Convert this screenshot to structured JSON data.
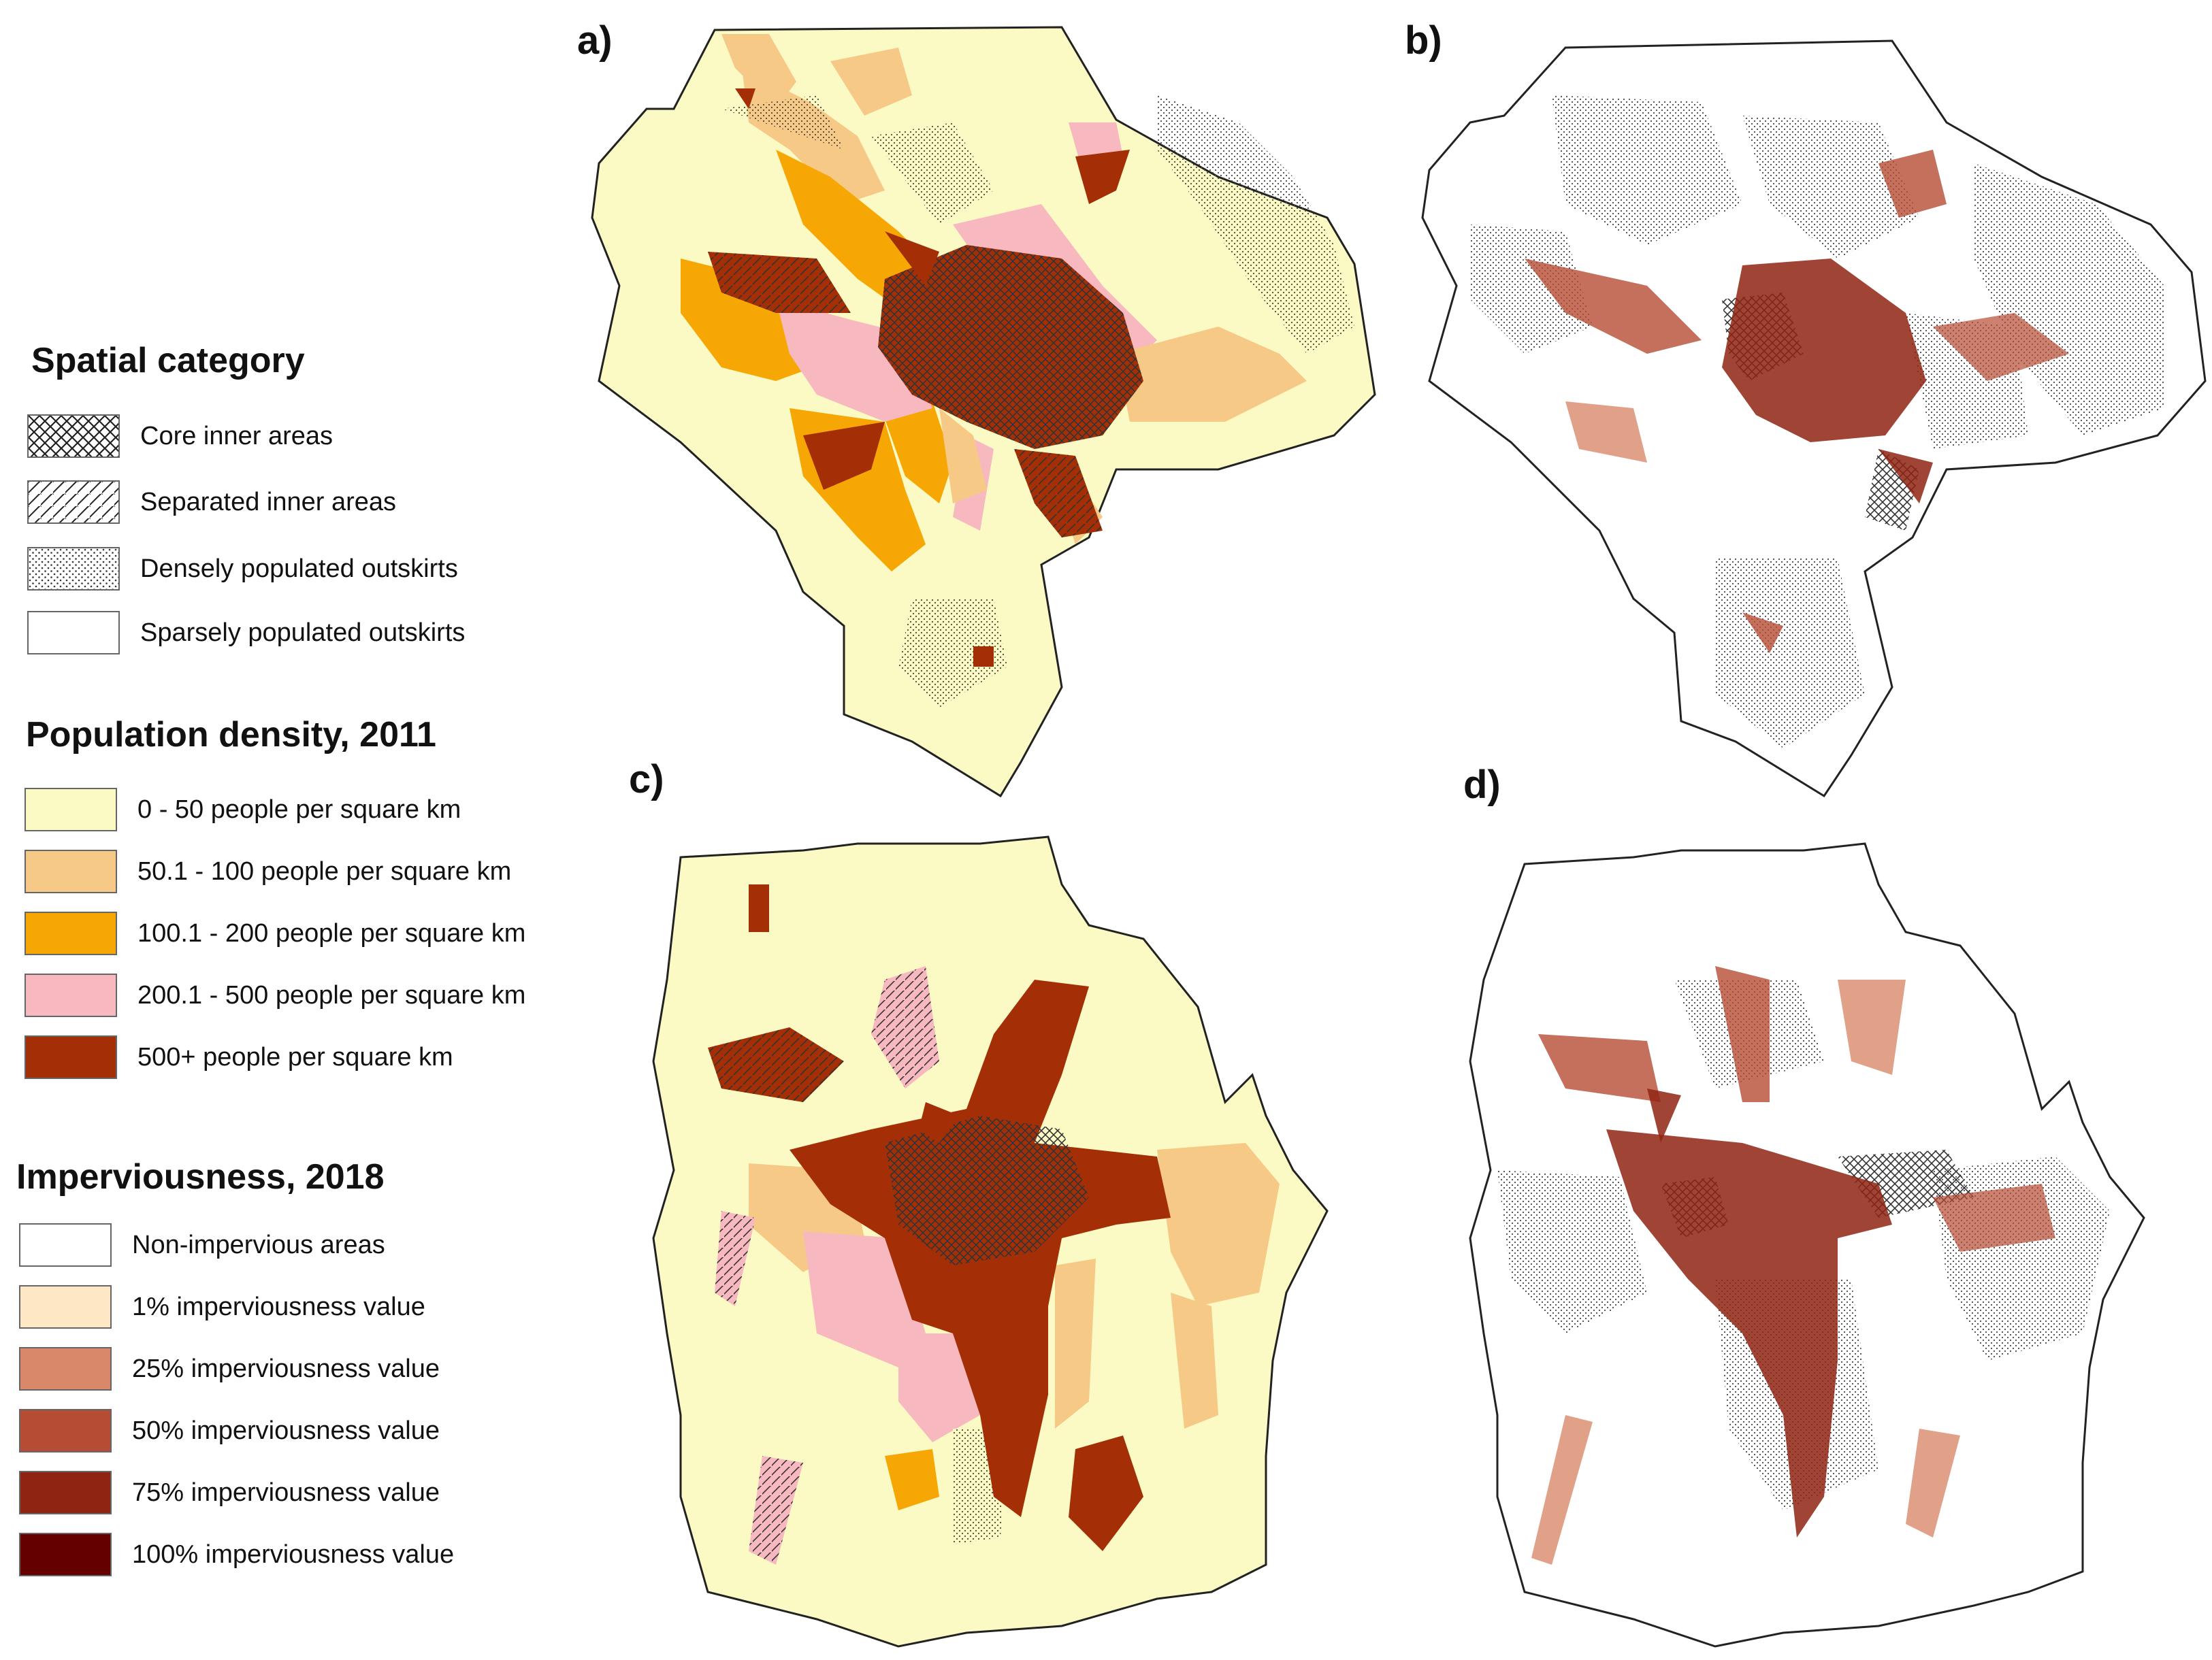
{
  "panels": [
    {
      "label": "a)"
    },
    {
      "label": "b)"
    },
    {
      "label": "c)"
    },
    {
      "label": "d)"
    }
  ],
  "legend": {
    "spatial_category": {
      "title": "Spatial category",
      "items": [
        {
          "label": "Core inner areas",
          "pattern": "crosshatch"
        },
        {
          "label": "Separated inner areas",
          "pattern": "diagonal-hatch"
        },
        {
          "label": "Densely populated outskirts",
          "pattern": "dots"
        },
        {
          "label": "Sparsely populated outskirts",
          "pattern": "blank"
        }
      ]
    },
    "population_density": {
      "title": "Population density, 2011",
      "items": [
        {
          "label": "0 - 50 people per square km",
          "color": "#fcfac4"
        },
        {
          "label": "50.1 - 100 people per square km",
          "color": "#f6ca86"
        },
        {
          "label": "100.1 - 200 people per square km",
          "color": "#f7a703"
        },
        {
          "label": "200.1 - 500 people per square km",
          "color": "#f7b9bf"
        },
        {
          "label": "500+ people per square km",
          "color": "#a42f06"
        }
      ]
    },
    "imperviousness": {
      "title": "Imperviousness, 2018",
      "items": [
        {
          "label": "Non-impervious areas",
          "color": "#ffffff"
        },
        {
          "label": "1% imperviousness value",
          "color": "#fde7c4"
        },
        {
          "label": "25% imperviousness value",
          "color": "#d9896a"
        },
        {
          "label": "50% imperviousness value",
          "color": "#b64c34"
        },
        {
          "label": "75% imperviousness value",
          "color": "#8f2412"
        },
        {
          "label": "100% imperviousness value",
          "color": "#640000"
        }
      ]
    }
  }
}
